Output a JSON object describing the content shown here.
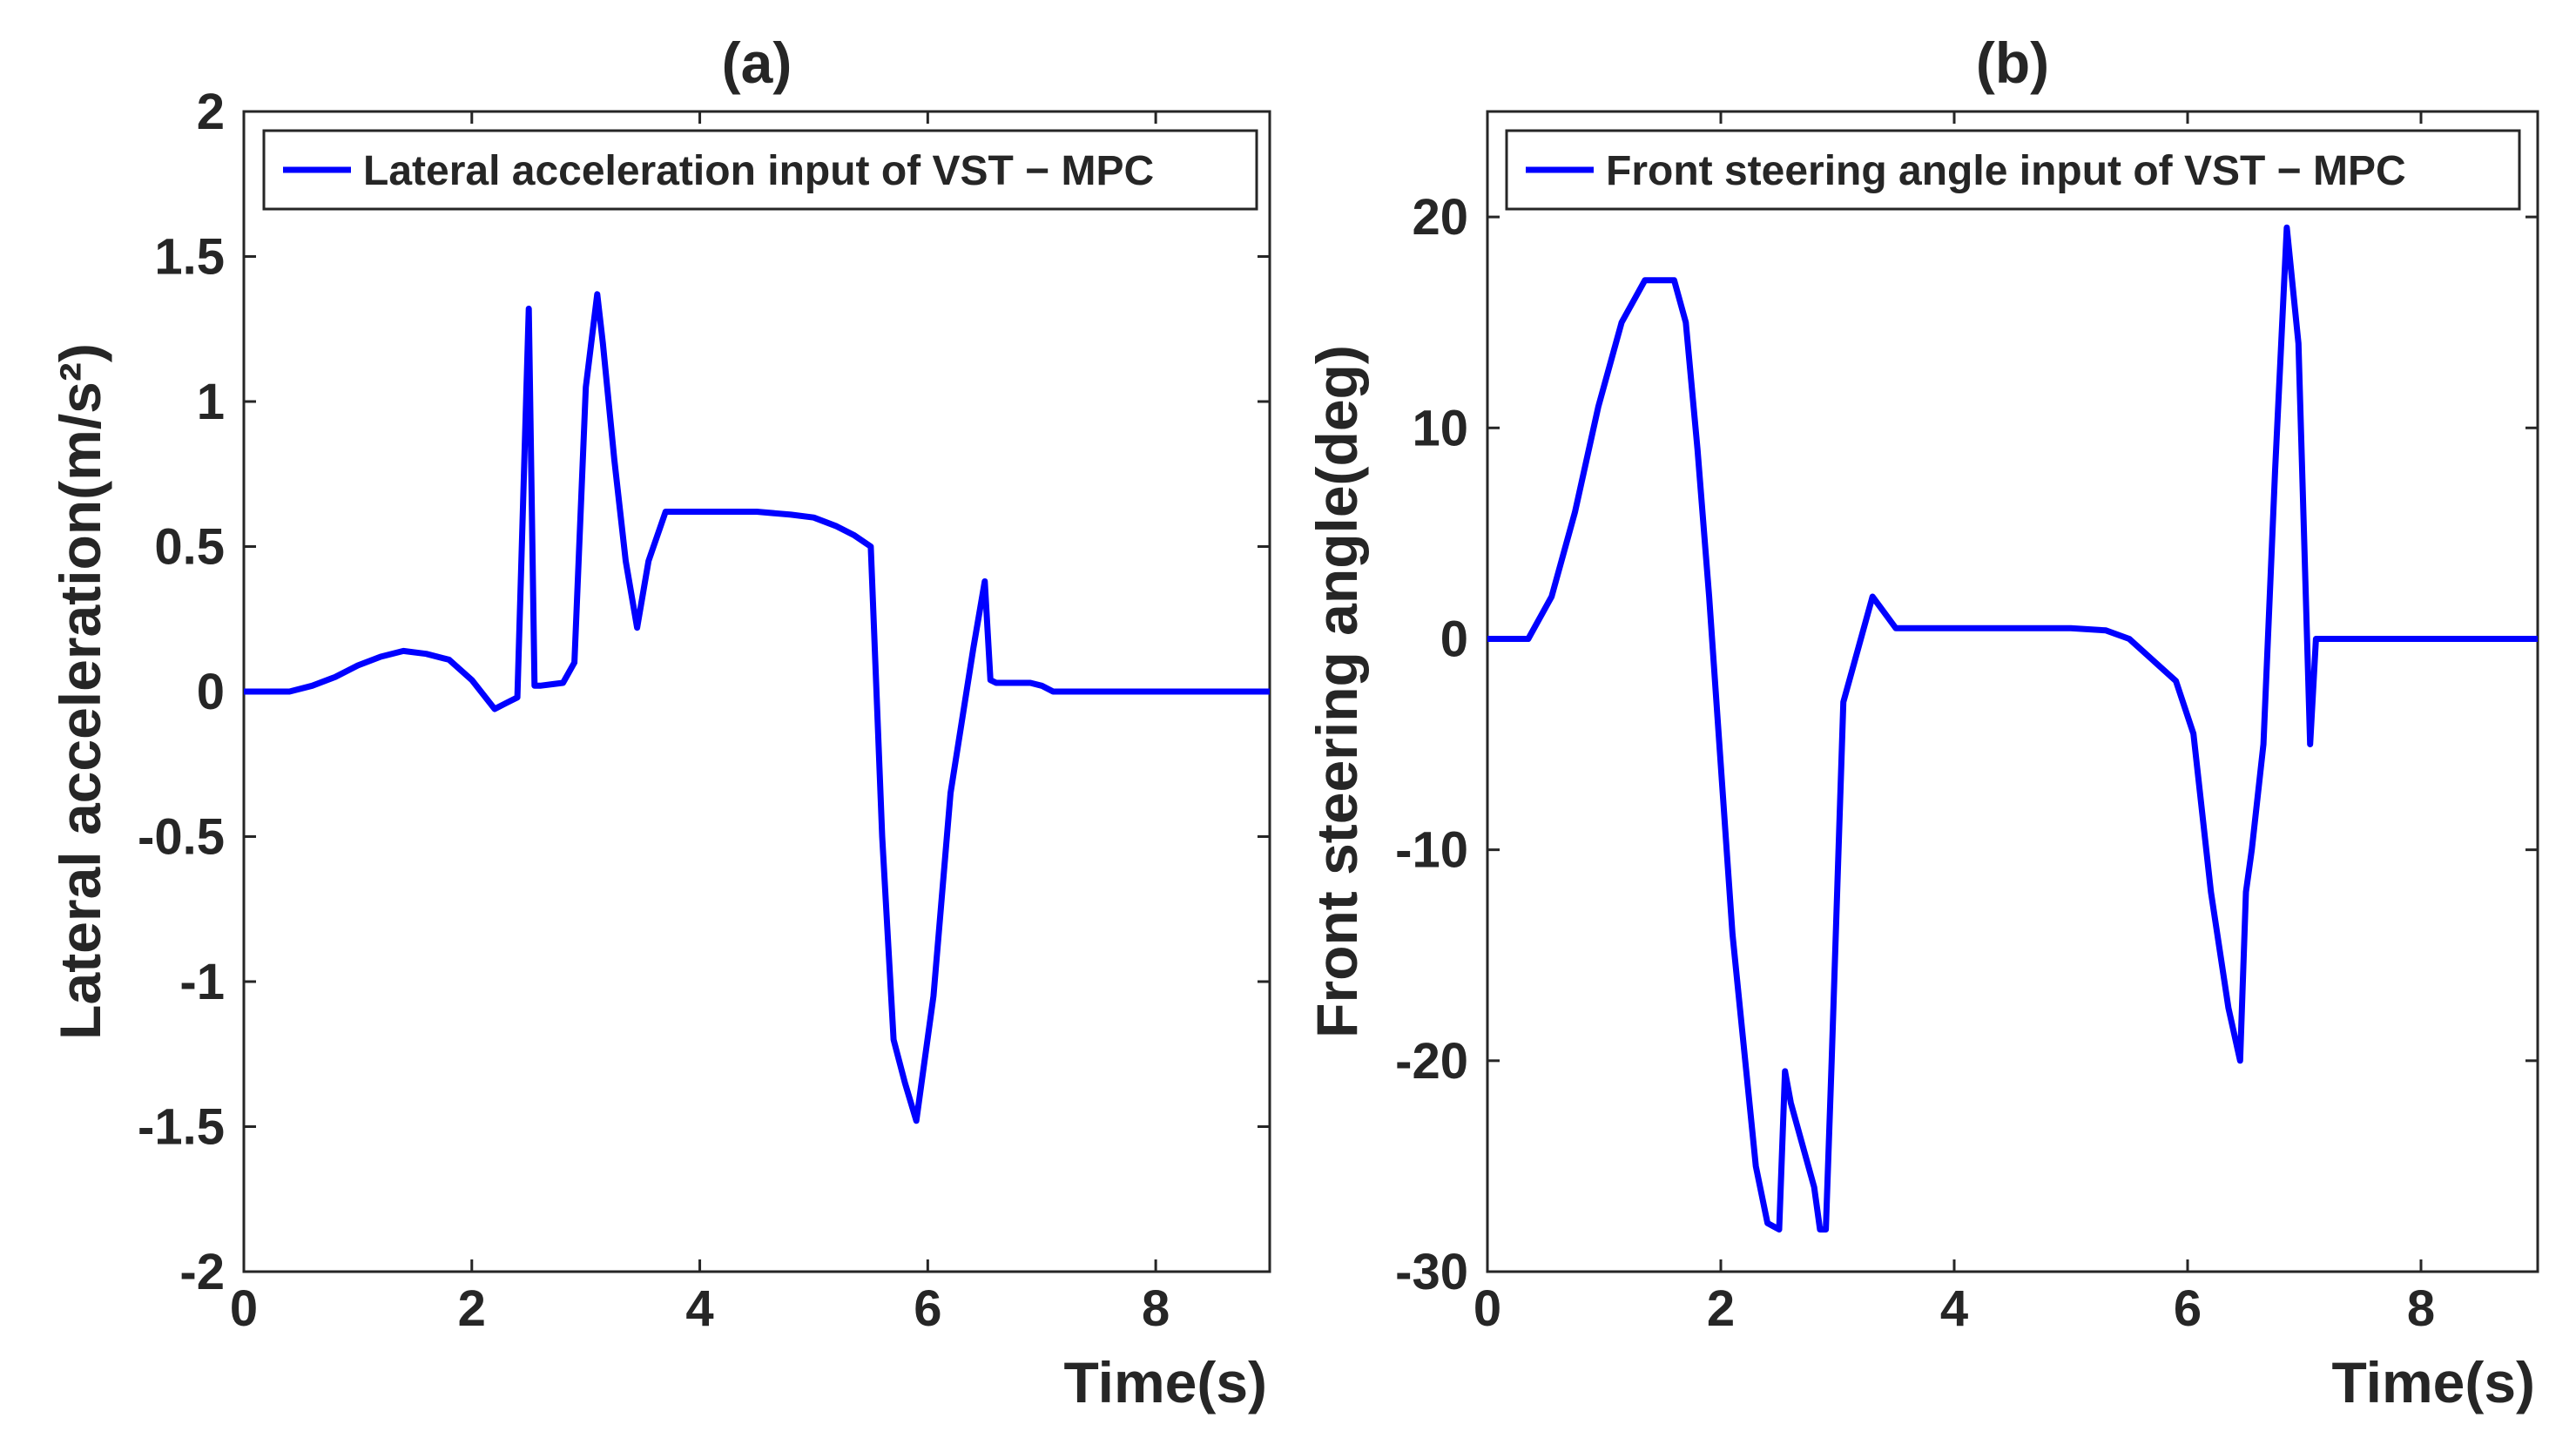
{
  "chart_data": [
    {
      "type": "line",
      "title": "(a)",
      "xlabel": "Time(s)",
      "ylabel": "Lateral acceleration(m/s²)",
      "xlim": [
        0,
        9
      ],
      "ylim": [
        -2,
        2
      ],
      "xticks": [
        0,
        2,
        4,
        6,
        8
      ],
      "yticks": [
        2,
        1.5,
        1,
        0.5,
        0,
        -0.5,
        -1,
        -1.5,
        -2
      ],
      "ytick_labels": [
        "2",
        "1.5",
        "1",
        "0.5",
        "0",
        "-0.5",
        "-1",
        "-1.5",
        "-2"
      ],
      "legend_position": "top-right",
      "series": [
        {
          "name": "Lateral acceleration input of VST − MPC",
          "color": "#0000ff",
          "x": [
            0,
            0.4,
            0.6,
            0.8,
            1.0,
            1.2,
            1.4,
            1.6,
            1.8,
            2.0,
            2.2,
            2.3,
            2.4,
            2.5,
            2.55,
            2.6,
            2.8,
            2.9,
            3.0,
            3.1,
            3.15,
            3.25,
            3.35,
            3.45,
            3.55,
            3.7,
            4.0,
            4.5,
            4.8,
            5.0,
            5.2,
            5.35,
            5.5,
            5.6,
            5.7,
            5.8,
            5.9,
            6.05,
            6.2,
            6.4,
            6.5,
            6.55,
            6.6,
            6.9,
            7.0,
            7.1,
            7.5,
            8.0,
            8.5,
            9.0
          ],
          "y": [
            0,
            0,
            0.02,
            0.05,
            0.09,
            0.12,
            0.14,
            0.13,
            0.11,
            0.04,
            -0.06,
            -0.04,
            -0.02,
            1.32,
            0.02,
            0.02,
            0.03,
            0.1,
            1.05,
            1.37,
            1.2,
            0.8,
            0.45,
            0.22,
            0.45,
            0.62,
            0.62,
            0.62,
            0.61,
            0.6,
            0.57,
            0.54,
            0.5,
            -0.5,
            -1.2,
            -1.35,
            -1.48,
            -1.05,
            -0.35,
            0.15,
            0.38,
            0.04,
            0.03,
            0.03,
            0.02,
            0,
            0,
            0,
            0,
            0
          ]
        }
      ]
    },
    {
      "type": "line",
      "title": "(b)",
      "xlabel": "Time(s)",
      "ylabel": "Front steering angle(deg)",
      "xlim": [
        0,
        9
      ],
      "ylim": [
        -30,
        25
      ],
      "xticks": [
        0,
        2,
        4,
        6,
        8
      ],
      "yticks": [
        20,
        10,
        0,
        -10,
        -20,
        -30
      ],
      "ytick_labels": [
        "20",
        "10",
        "0",
        "-10",
        "-20",
        "-30"
      ],
      "legend_position": "top-right",
      "series": [
        {
          "name": "Front steering angle input of VST − MPC",
          "color": "#0000ff",
          "x": [
            0,
            0.35,
            0.55,
            0.75,
            0.95,
            1.15,
            1.35,
            1.45,
            1.6,
            1.7,
            1.8,
            1.9,
            2.0,
            2.1,
            2.3,
            2.4,
            2.5,
            2.55,
            2.6,
            2.7,
            2.8,
            2.85,
            2.9,
            2.95,
            3.05,
            3.15,
            3.3,
            3.5,
            3.7,
            4.0,
            4.5,
            5.0,
            5.3,
            5.5,
            5.7,
            5.9,
            6.05,
            6.2,
            6.35,
            6.45,
            6.5,
            6.55,
            6.65,
            6.75,
            6.85,
            6.95,
            7.05,
            7.1,
            7.15,
            7.5,
            8.0,
            8.5,
            9.0
          ],
          "y": [
            0,
            0,
            2,
            6,
            11,
            15,
            17,
            17,
            17,
            15,
            9,
            2,
            -6,
            -14,
            -25,
            -27.7,
            -28,
            -20.5,
            -22,
            -24,
            -26,
            -28,
            -28,
            -20,
            -3,
            -1,
            2,
            0.5,
            0.5,
            0.5,
            0.5,
            0.5,
            0.4,
            0,
            -1,
            -2,
            -4.5,
            -12,
            -17.5,
            -20,
            -12,
            -10,
            -5,
            8,
            19.5,
            14,
            -5,
            0,
            0,
            0,
            0,
            0,
            0
          ]
        }
      ]
    }
  ]
}
